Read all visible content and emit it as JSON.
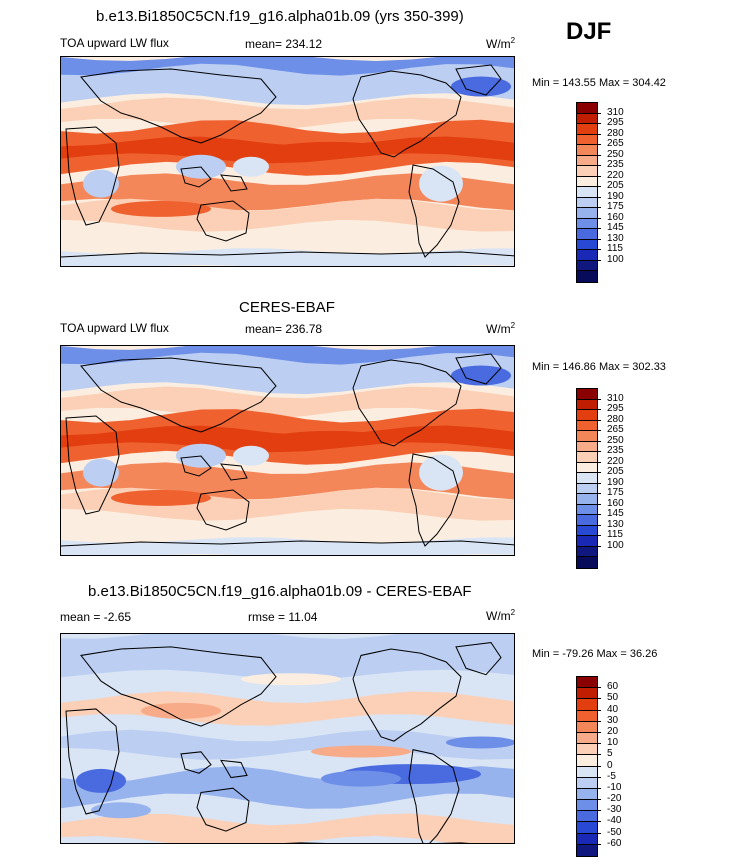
{
  "season": "DJF",
  "panels": [
    {
      "title": "b.e13.Bi1850C5CN.f19_g16.alpha01b.09 (yrs 350-399)",
      "left_label": "TOA upward LW flux",
      "center_label": "mean= 234.12",
      "units": "W/m",
      "units_sup": "2",
      "minmax": "Min = 143.55 Max = 304.42",
      "colorbar_labels": [
        "310",
        "295",
        "280",
        "265",
        "250",
        "235",
        "220",
        "205",
        "190",
        "175",
        "160",
        "145",
        "130",
        "115",
        "100"
      ],
      "colors": [
        "#8a0000",
        "#c11d00",
        "#e23e10",
        "#ef6230",
        "#f4875a",
        "#f8ab88",
        "#fbd0b6",
        "#fbeee0",
        "#d9e4f5",
        "#bccff2",
        "#97b3ee",
        "#6e8fe8",
        "#4a6be0",
        "#2849d3",
        "#1a29b5",
        "#101880",
        "#080a5a"
      ],
      "map_type": "olr_model"
    },
    {
      "title": "CERES-EBAF",
      "left_label": "TOA upward LW flux",
      "center_label": "mean= 236.78",
      "units": "W/m",
      "units_sup": "2",
      "minmax": "Min = 146.86 Max = 302.33",
      "colorbar_labels": [
        "310",
        "295",
        "280",
        "265",
        "250",
        "235",
        "220",
        "205",
        "190",
        "175",
        "160",
        "145",
        "130",
        "115",
        "100"
      ],
      "colors": [
        "#8a0000",
        "#c11d00",
        "#e23e10",
        "#ef6230",
        "#f4875a",
        "#f8ab88",
        "#fbd0b6",
        "#fbeee0",
        "#d9e4f5",
        "#bccff2",
        "#97b3ee",
        "#6e8fe8",
        "#4a6be0",
        "#2849d3",
        "#1a29b5",
        "#101880",
        "#080a5a"
      ],
      "map_type": "olr_obs"
    },
    {
      "title": "b.e13.Bi1850C5CN.f19_g16.alpha01b.09 - CERES-EBAF",
      "left_label": "mean =  -2.65",
      "center_label": "rmse =  11.04",
      "units": "W/m",
      "units_sup": "2",
      "minmax": "Min = -79.26 Max =  36.26",
      "colorbar_labels": [
        "60",
        "50",
        "40",
        "30",
        "20",
        "10",
        "5",
        "0",
        "-5",
        "-10",
        "-20",
        "-30",
        "-40",
        "-50",
        "-60"
      ],
      "colors": [
        "#8a0000",
        "#c11d00",
        "#e23e10",
        "#ef6230",
        "#f4875a",
        "#f8ab88",
        "#fbd0b6",
        "#fbeee0",
        "#d9e4f5",
        "#bccff2",
        "#97b3ee",
        "#6e8fe8",
        "#4a6be0",
        "#2849d3",
        "#1a29b5",
        "#101880"
      ],
      "map_type": "diff"
    }
  ]
}
